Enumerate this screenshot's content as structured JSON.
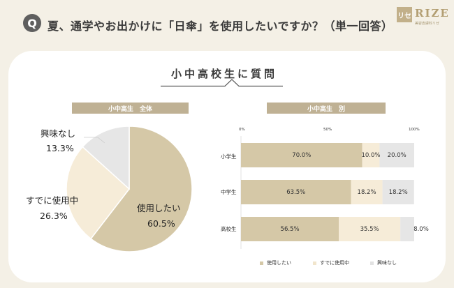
{
  "header": {
    "q_mark": "Q",
    "question": "夏、通学やお出かけに「日傘」を使用したいですか？（単一回答）",
    "logo_box": "リセ",
    "logo_word": "RIZE",
    "logo_sub": "美容皮膚科リゼ"
  },
  "card_title": "小中高校生に質問",
  "pill_overall": "小中高生　全体",
  "pill_by_grade": "小中高生　別",
  "colors": {
    "want": "#d5c8a7",
    "already": "#f6ecd8",
    "no_interest": "#e6e6e6"
  },
  "chart_data": [
    {
      "type": "pie",
      "title": "小中高生　全体",
      "slices": [
        {
          "label": "使用したい",
          "value": 60.5,
          "display": "60.5%",
          "color": "#d5c8a7"
        },
        {
          "label": "すでに使用中",
          "value": 26.3,
          "display": "26.3%",
          "color": "#f6ecd8"
        },
        {
          "label": "興味なし",
          "value": 13.3,
          "display": "13.3%",
          "color": "#e6e6e6"
        }
      ]
    },
    {
      "type": "bar",
      "orientation": "horizontal",
      "stacked": true,
      "title": "小中高生　別",
      "categories": [
        "小学生",
        "中学生",
        "高校生"
      ],
      "xlim": [
        0,
        100
      ],
      "x_ticks": [
        "0%",
        "50%",
        "100%"
      ],
      "series": [
        {
          "name": "使用したい",
          "values": [
            70.0,
            63.5,
            56.5
          ],
          "labels": [
            "70.0%",
            "63.5%",
            "56.5%"
          ],
          "color": "#d5c8a7"
        },
        {
          "name": "すでに使用中",
          "values": [
            10.0,
            18.2,
            35.5
          ],
          "labels": [
            "10.0%",
            "18.2%",
            "35.5%"
          ],
          "color": "#f6ecd8"
        },
        {
          "name": "興味なし",
          "values": [
            20.0,
            18.2,
            8.0
          ],
          "labels": [
            "20.0%",
            "18.2%",
            "8.0%"
          ],
          "color": "#e6e6e6"
        }
      ],
      "legend_position": "bottom"
    }
  ]
}
